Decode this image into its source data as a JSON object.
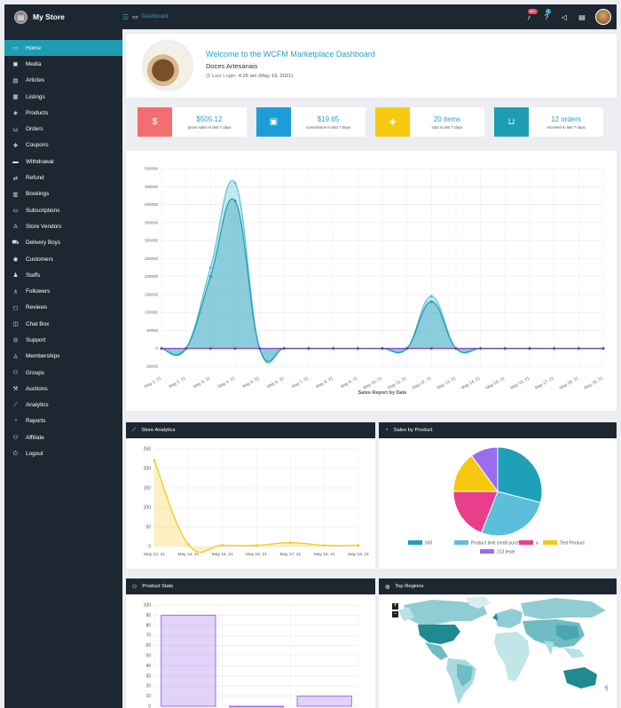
{
  "topbar": {
    "brand": "My Store",
    "breadcrumb": "Dashboard",
    "notifications_count": "99+",
    "help_count": "2"
  },
  "sidebar": {
    "items": [
      {
        "label": "Home",
        "icon": "monitor-icon",
        "glyph": "▭",
        "active": true
      },
      {
        "label": "Media",
        "icon": "image-icon",
        "glyph": "▣"
      },
      {
        "label": "Articles",
        "icon": "document-icon",
        "glyph": "▤"
      },
      {
        "label": "Listings",
        "icon": "list-icon",
        "glyph": "▦"
      },
      {
        "label": "Products",
        "icon": "cube-icon",
        "glyph": "◈"
      },
      {
        "label": "Orders",
        "icon": "cart-icon",
        "glyph": "⊔"
      },
      {
        "label": "Coupons",
        "icon": "gift-icon",
        "glyph": "❖"
      },
      {
        "label": "Withdrawal",
        "icon": "credit-card-icon",
        "glyph": "▬"
      },
      {
        "label": "Refund",
        "icon": "retweet-icon",
        "glyph": "⇄"
      },
      {
        "label": "Bookings",
        "icon": "calendar-icon",
        "glyph": "▥"
      },
      {
        "label": "Subscriptions",
        "icon": "money-icon",
        "glyph": "▭"
      },
      {
        "label": "Store Vendors",
        "icon": "user-icon",
        "glyph": "♙"
      },
      {
        "label": "Delivery Boys",
        "icon": "truck-icon",
        "glyph": "⛟"
      },
      {
        "label": "Customers",
        "icon": "user-circle-icon",
        "glyph": "◉"
      },
      {
        "label": "Staffs",
        "icon": "user-tie-icon",
        "glyph": "♟"
      },
      {
        "label": "Followers",
        "icon": "child-icon",
        "glyph": "♗"
      },
      {
        "label": "Reviews",
        "icon": "comment-icon",
        "glyph": "◻"
      },
      {
        "label": "Chat Box",
        "icon": "chat-icon",
        "glyph": "◫"
      },
      {
        "label": "Support",
        "icon": "life-ring-icon",
        "glyph": "◎"
      },
      {
        "label": "Memberships",
        "icon": "user-plus-icon",
        "glyph": "♙"
      },
      {
        "label": "Groups",
        "icon": "users-icon",
        "glyph": "⚇"
      },
      {
        "label": "Auctions",
        "icon": "gavel-icon",
        "glyph": "⚒"
      },
      {
        "label": "Analytics",
        "icon": "chart-line-icon",
        "glyph": "⟋"
      },
      {
        "label": "Reports",
        "icon": "pie-chart-icon",
        "glyph": "◔"
      },
      {
        "label": "Affiliate",
        "icon": "user-friends-icon",
        "glyph": "⚇"
      },
      {
        "label": "Logout",
        "icon": "power-icon",
        "glyph": "⏻"
      }
    ]
  },
  "welcome": {
    "title": "Welcome to the WCFM Marketplace Dashboard",
    "store_name": "Doces Artesanais",
    "last_login_label": "Last Login:",
    "last_login_value": "4:26 am (May 19, 2021)"
  },
  "stats": [
    {
      "value": "$505.12",
      "label": "gross sales in last 7 days",
      "icon": "dollar-icon",
      "glyph": "$",
      "color": "#f36f6f"
    },
    {
      "value": "$19.65",
      "label": "commission in last 7 days",
      "icon": "money-bill-icon",
      "glyph": "▣",
      "color": "#1e9cd8"
    },
    {
      "value": "20 items",
      "label": "sold in last 7 days",
      "icon": "cube-icon",
      "glyph": "◈",
      "color": "#f6c90e"
    },
    {
      "value": "12 orders",
      "label": "received in last 7 days",
      "icon": "cart-icon",
      "glyph": "⊔",
      "color": "#1e9cb4"
    }
  ],
  "panels": {
    "store_analytics": "Store Analytics",
    "sales_by_product": "Sales by Product",
    "product_stats": "Product Stats",
    "top_regions": "Top Regions"
  },
  "chart_data": [
    {
      "type": "area",
      "xlabel": "Sales Report by Date",
      "ylim": [
        -50000,
        500000
      ],
      "yticks": [
        "500000",
        "450000",
        "400000",
        "350000",
        "300000",
        "250000",
        "200000",
        "150000",
        "100000",
        "50000",
        "0",
        "-50000"
      ],
      "categories": [
        "May 1, 21",
        "May 2, 21",
        "May 3, 21",
        "May 4, 21",
        "May 5, 21",
        "May 6, 21",
        "May 7, 21",
        "May 8, 21",
        "May 9, 21",
        "May 10, 21",
        "May 11, 21",
        "May 12, 21",
        "May 13, 21",
        "May 14, 21",
        "May 15, 21",
        "May 16, 21",
        "May 17, 21",
        "May 18, 21",
        "May 19, 21"
      ],
      "series": [
        {
          "values": [
            0,
            0,
            225000,
            460000,
            0,
            0,
            0,
            0,
            0,
            0,
            0,
            145000,
            0,
            0,
            0,
            0,
            0,
            0,
            0
          ],
          "color": "#5bc0d8"
        },
        {
          "values": [
            0,
            0,
            200000,
            410000,
            0,
            0,
            0,
            0,
            0,
            0,
            0,
            130000,
            0,
            0,
            0,
            0,
            0,
            0,
            0
          ],
          "color": "#1e9cb4"
        },
        {
          "values": [
            0,
            0,
            0,
            0,
            0,
            0,
            0,
            0,
            0,
            0,
            0,
            0,
            0,
            0,
            0,
            0,
            0,
            0,
            0
          ],
          "color": "#7b3fb0"
        }
      ]
    },
    {
      "type": "area",
      "ylim": [
        0,
        250
      ],
      "yticks": [
        "250",
        "200",
        "150",
        "100",
        "50",
        "0"
      ],
      "categories": [
        "May 13, 21",
        "May 14, 21",
        "May 15, 21",
        "May 16, 21",
        "May 17, 21",
        "May 18, 21",
        "May 19, 21"
      ],
      "values": [
        220,
        5,
        3,
        3,
        10,
        3,
        3
      ],
      "color": "#f6c90e"
    },
    {
      "type": "pie",
      "categories": [
        "500",
        "Product limit credit purchase",
        "a",
        "Test Product",
        "213 teste"
      ],
      "values": [
        29,
        27,
        19,
        15,
        10
      ],
      "colors": [
        "#1ea0b8",
        "#5bbfdc",
        "#e83e8c",
        "#f6c90e",
        "#9b6cf0"
      ]
    },
    {
      "type": "bar",
      "ylim": [
        0,
        100
      ],
      "yticks": [
        "100",
        "90",
        "80",
        "70",
        "60",
        "50",
        "40",
        "30",
        "20",
        "10",
        "0"
      ],
      "values": [
        90,
        0,
        10
      ],
      "color": "#9b6cf0"
    }
  ]
}
